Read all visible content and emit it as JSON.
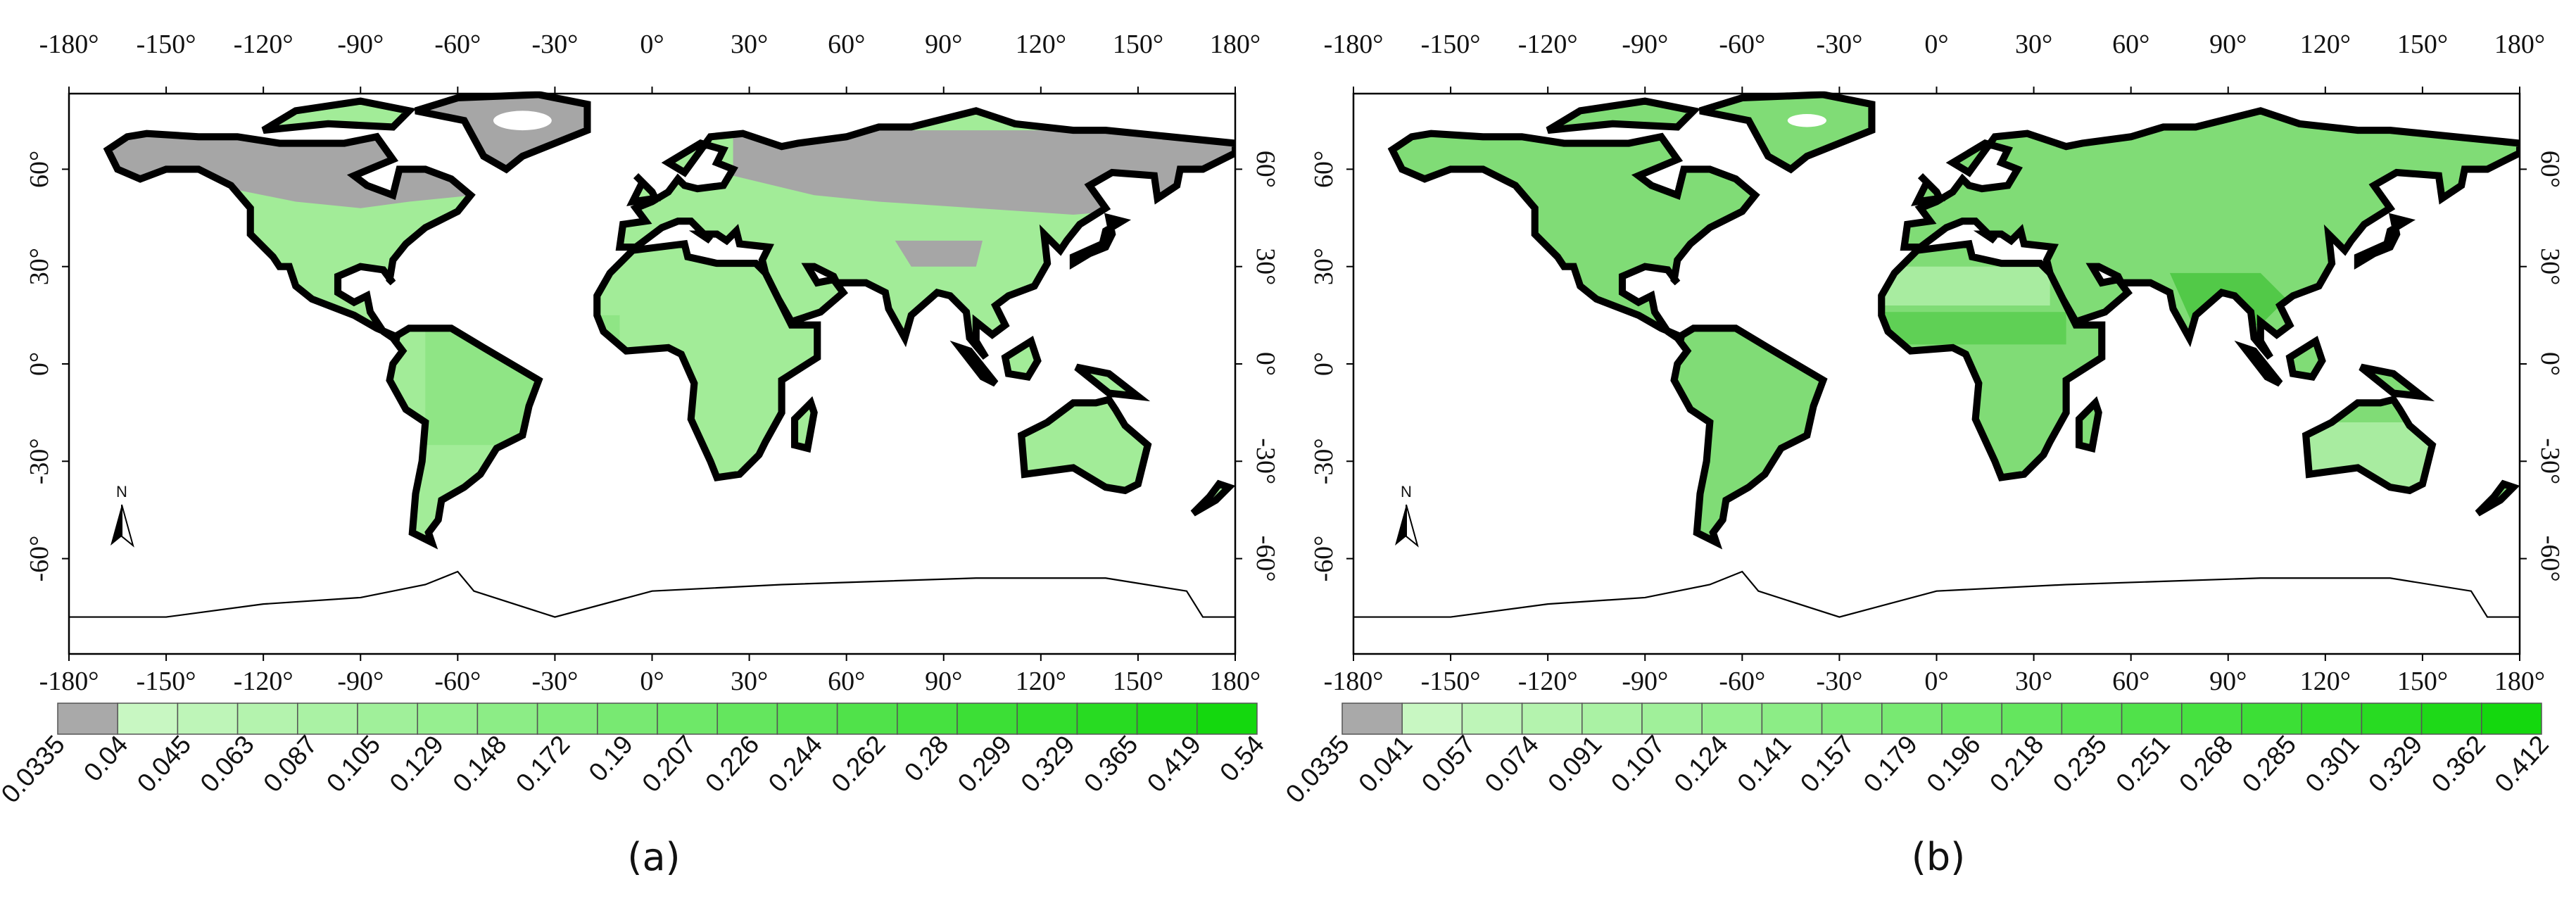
{
  "panels": [
    {
      "label": "(a)",
      "lon_labels": [
        "-180°",
        "-150°",
        "-120°",
        "-90°",
        "-60°",
        "-30°",
        "0°",
        "30°",
        "60°",
        "90°",
        "120°",
        "150°",
        "180°"
      ],
      "lat_labels": [
        "60°",
        "30°",
        "0°",
        "-30°",
        "-60°"
      ],
      "north": "N",
      "legend": {
        "colors": [
          "#a9a9a9",
          "#c8f7c2",
          "#bef5b8",
          "#b4f3ae",
          "#aaf2a4",
          "#a0f09a",
          "#96ef90",
          "#8ced86",
          "#82eb7c",
          "#78e972",
          "#6ee868",
          "#64e65e",
          "#5ae454",
          "#50e24a",
          "#46e140",
          "#3cdf36",
          "#32dd2c",
          "#28db22",
          "#1ed918",
          "#14d80e"
        ],
        "labels": [
          0.0335,
          0.04,
          0.045,
          0.063,
          0.087,
          0.105,
          0.129,
          0.148,
          0.172,
          0.19,
          0.207,
          0.226,
          0.244,
          0.262,
          0.28,
          0.299,
          0.329,
          0.365,
          0.419,
          0.54
        ]
      }
    },
    {
      "label": "(b)",
      "lon_labels": [
        "-180°",
        "-150°",
        "-120°",
        "-90°",
        "-60°",
        "-30°",
        "0°",
        "30°",
        "60°",
        "90°",
        "120°",
        "150°",
        "180°"
      ],
      "lat_labels": [
        "60°",
        "30°",
        "0°",
        "-30°",
        "-60°"
      ],
      "north": "N",
      "legend": {
        "colors": [
          "#a9a9a9",
          "#c8f7c2",
          "#bef5b8",
          "#b4f3ae",
          "#aaf2a4",
          "#a0f09a",
          "#96ef90",
          "#8ced86",
          "#82eb7c",
          "#78e972",
          "#6ee868",
          "#64e65e",
          "#5ae454",
          "#50e24a",
          "#46e140",
          "#3cdf36",
          "#32dd2c",
          "#28db22",
          "#1ed918",
          "#14d80e"
        ],
        "labels": [
          0.0335,
          0.041,
          0.057,
          0.074,
          0.091,
          0.107,
          0.124,
          0.141,
          0.157,
          0.179,
          0.196,
          0.218,
          0.235,
          0.251,
          0.268,
          0.285,
          0.301,
          0.329,
          0.362,
          0.412
        ]
      }
    }
  ]
}
